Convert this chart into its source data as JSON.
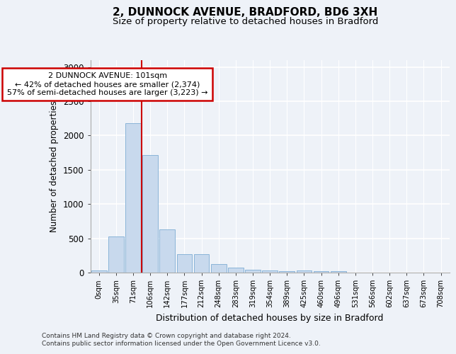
{
  "title_line1": "2, DUNNOCK AVENUE, BRADFORD, BD6 3XH",
  "title_line2": "Size of property relative to detached houses in Bradford",
  "xlabel": "Distribution of detached houses by size in Bradford",
  "ylabel": "Number of detached properties",
  "categories": [
    "0sqm",
    "35sqm",
    "71sqm",
    "106sqm",
    "142sqm",
    "177sqm",
    "212sqm",
    "248sqm",
    "283sqm",
    "319sqm",
    "354sqm",
    "389sqm",
    "425sqm",
    "460sqm",
    "496sqm",
    "531sqm",
    "566sqm",
    "602sqm",
    "637sqm",
    "673sqm",
    "708sqm"
  ],
  "bar_heights": [
    30,
    525,
    2185,
    1720,
    635,
    265,
    265,
    120,
    70,
    45,
    30,
    25,
    30,
    20,
    20,
    0,
    0,
    0,
    0,
    0,
    0
  ],
  "bar_color": "#c8d9ed",
  "bar_edgecolor": "#8ab4d8",
  "redline_color": "#cc0000",
  "annotation_line1": "2 DUNNOCK AVENUE: 101sqm",
  "annotation_line2": "← 42% of detached houses are smaller (2,374)",
  "annotation_line3": "57% of semi-detached houses are larger (3,223) →",
  "annotation_box_facecolor": "#ffffff",
  "annotation_box_edgecolor": "#cc0000",
  "ylim": [
    0,
    3100
  ],
  "yticks": [
    0,
    500,
    1000,
    1500,
    2000,
    2500,
    3000
  ],
  "footnote1": "Contains HM Land Registry data © Crown copyright and database right 2024.",
  "footnote2": "Contains public sector information licensed under the Open Government Licence v3.0.",
  "bg_color": "#eef2f8",
  "grid_color": "#ffffff"
}
